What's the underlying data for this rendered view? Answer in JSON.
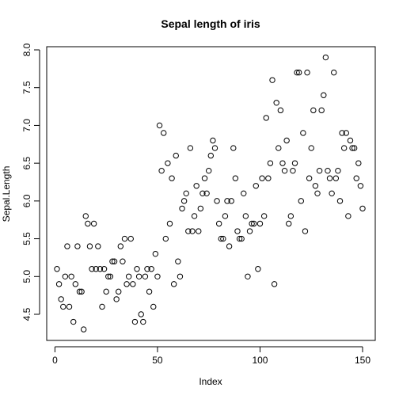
{
  "chart_data": {
    "type": "scatter",
    "title": "Sepal length of iris",
    "xlabel": "Index",
    "ylabel": "Sepal.Length",
    "xlim": [
      1,
      150
    ],
    "ylim": [
      4.3,
      7.9
    ],
    "x_ticks": [
      0,
      50,
      100,
      150
    ],
    "x_tick_labels": [
      "0",
      "50",
      "100",
      "150"
    ],
    "y_ticks": [
      4.5,
      5.0,
      5.5,
      6.0,
      6.5,
      7.0,
      7.5,
      8.0
    ],
    "y_tick_labels": [
      "4.5",
      "5.0",
      "5.5",
      "6.0",
      "6.5",
      "7.0",
      "7.5",
      "8.0"
    ],
    "grid": false,
    "point_style": "open-circle",
    "series": [
      {
        "x": [
          1,
          2,
          3,
          4,
          5,
          6,
          7,
          8,
          9,
          10,
          11,
          12,
          13,
          14,
          15,
          16,
          17,
          18,
          19,
          20,
          21,
          22,
          23,
          24,
          25,
          26,
          27,
          28,
          29,
          30,
          31,
          32,
          33,
          34,
          35,
          36,
          37,
          38,
          39,
          40,
          41,
          42,
          43,
          44,
          45,
          46,
          47,
          48,
          49,
          50,
          51,
          52,
          53,
          54,
          55,
          56,
          57,
          58,
          59,
          60,
          61,
          62,
          63,
          64,
          65,
          66,
          67,
          68,
          69,
          70,
          71,
          72,
          73,
          74,
          75,
          76,
          77,
          78,
          79,
          80,
          81,
          82,
          83,
          84,
          85,
          86,
          87,
          88,
          89,
          90,
          91,
          92,
          93,
          94,
          95,
          96,
          97,
          98,
          99,
          100,
          101,
          102,
          103,
          104,
          105,
          106,
          107,
          108,
          109,
          110,
          111,
          112,
          113,
          114,
          115,
          116,
          117,
          118,
          119,
          120,
          121,
          122,
          123,
          124,
          125,
          126,
          127,
          128,
          129,
          130,
          131,
          132,
          133,
          134,
          135,
          136,
          137,
          138,
          139,
          140,
          141,
          142,
          143,
          144,
          145,
          146,
          147,
          148,
          149,
          150
        ],
        "y": [
          5.1,
          4.9,
          4.7,
          4.6,
          5.0,
          5.4,
          4.6,
          5.0,
          4.4,
          4.9,
          5.4,
          4.8,
          4.8,
          4.3,
          5.8,
          5.7,
          5.4,
          5.1,
          5.7,
          5.1,
          5.4,
          5.1,
          4.6,
          5.1,
          4.8,
          5.0,
          5.0,
          5.2,
          5.2,
          4.7,
          4.8,
          5.4,
          5.2,
          5.5,
          4.9,
          5.0,
          5.5,
          4.9,
          4.4,
          5.1,
          5.0,
          4.5,
          4.4,
          5.0,
          5.1,
          4.8,
          5.1,
          4.6,
          5.3,
          5.0,
          7.0,
          6.4,
          6.9,
          5.5,
          6.5,
          5.7,
          6.3,
          4.9,
          6.6,
          5.2,
          5.0,
          5.9,
          6.0,
          6.1,
          5.6,
          6.7,
          5.6,
          5.8,
          6.2,
          5.6,
          5.9,
          6.1,
          6.3,
          6.1,
          6.4,
          6.6,
          6.8,
          6.7,
          6.0,
          5.7,
          5.5,
          5.5,
          5.8,
          6.0,
          5.4,
          6.0,
          6.7,
          6.3,
          5.6,
          5.5,
          5.5,
          6.1,
          5.8,
          5.0,
          5.6,
          5.7,
          5.7,
          6.2,
          5.1,
          5.7,
          6.3,
          5.8,
          7.1,
          6.3,
          6.5,
          7.6,
          4.9,
          7.3,
          6.7,
          7.2,
          6.5,
          6.4,
          6.8,
          5.7,
          5.8,
          6.4,
          6.5,
          7.7,
          7.7,
          6.0,
          6.9,
          5.6,
          7.7,
          6.3,
          6.7,
          7.2,
          6.2,
          6.1,
          6.4,
          7.2,
          7.4,
          7.9,
          6.4,
          6.3,
          6.1,
          7.7,
          6.3,
          6.4,
          6.0,
          6.9,
          6.7,
          6.9,
          5.8,
          6.8,
          6.7,
          6.7,
          6.3,
          6.5,
          6.2,
          5.9
        ]
      }
    ]
  }
}
